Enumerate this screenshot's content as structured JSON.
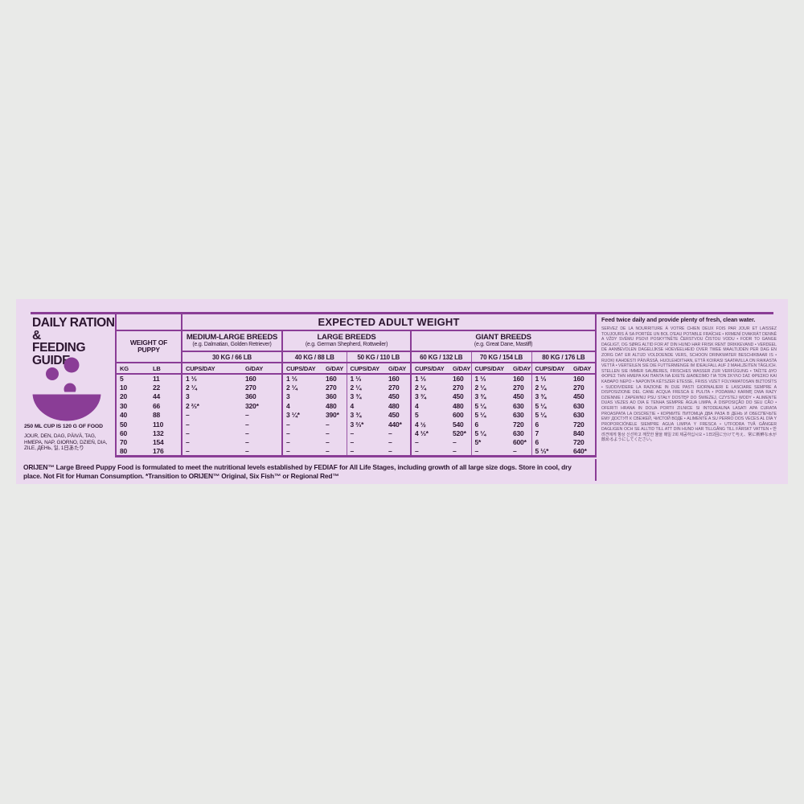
{
  "colors": {
    "background": "#e9eae8",
    "panel": "#ebd9ef",
    "accent_purple": "#8a3d96",
    "text": "#2c1630"
  },
  "left_panel": {
    "title_line1": "DAILY RATION &",
    "title_line2": "FEEDING GUIDE",
    "bowl_icon": "kibble-bowl-icon",
    "cup_note": "250 ML CUP IS 120 G OF FOOD",
    "day_words": "JOUR, DEN, DAG, PÄIVÄ, TAG, HMEPA, NAP, GIORNO, DZIEŃ, DIA, ZILE, ДЕНЬ, 일, 1日あたり"
  },
  "table": {
    "title": "EXPECTED ADULT WEIGHT",
    "weight_label_line1": "WEIGHT OF",
    "weight_label_line2": "PUPPY",
    "groups": [
      {
        "name": "MEDIUM-LARGE BREEDS",
        "examples": "(e.g. Dalmatian, Golden Retriever)",
        "weights": [
          "30 KG / 66 LB"
        ]
      },
      {
        "name": "LARGE BREEDS",
        "examples": "(e.g. German Shepherd, Rottweiler)",
        "weights": [
          "40 KG / 88 LB",
          "50 KG / 110 LB"
        ]
      },
      {
        "name": "GIANT BREEDS",
        "examples": "(e.g. Great Dane, Mastiff)",
        "weights": [
          "60 KG / 132 LB",
          "70 KG / 154 LB",
          "80 KG / 176 LB"
        ]
      }
    ],
    "col_headers": {
      "kg": "KG",
      "lb": "LB",
      "cups": "CUPS/DAY",
      "g": "G/DAY"
    },
    "rows": [
      {
        "kg": "5",
        "lb": "11",
        "cells": [
          "1 ⅓",
          "160",
          "1 ⅓",
          "160",
          "1 ⅓",
          "160",
          "1 ⅓",
          "160",
          "1 ⅓",
          "160",
          "1 ⅓",
          "160"
        ]
      },
      {
        "kg": "10",
        "lb": "22",
        "cells": [
          "2 ¼",
          "270",
          "2 ¼",
          "270",
          "2 ¼",
          "270",
          "2 ¼",
          "270",
          "2 ¼",
          "270",
          "2 ¼",
          "270"
        ]
      },
      {
        "kg": "20",
        "lb": "44",
        "cells": [
          "3",
          "360",
          "3",
          "360",
          "3 ¾",
          "450",
          "3 ¾",
          "450",
          "3 ¾",
          "450",
          "3 ¾",
          "450"
        ]
      },
      {
        "kg": "30",
        "lb": "66",
        "cells": [
          "2 ⅔*",
          "320*",
          "4",
          "480",
          "4",
          "480",
          "4",
          "480",
          "5 ¼",
          "630",
          "5 ¼",
          "630"
        ]
      },
      {
        "kg": "40",
        "lb": "88",
        "cells": [
          "–",
          "–",
          "3 ¼*",
          "390*",
          "3 ¾",
          "450",
          "5",
          "600",
          "5 ¼",
          "630",
          "5 ¼",
          "630"
        ]
      },
      {
        "kg": "50",
        "lb": "110",
        "cells": [
          "–",
          "–",
          "–",
          "–",
          "3 ⅔*",
          "440*",
          "4 ½",
          "540",
          "6",
          "720",
          "6",
          "720"
        ]
      },
      {
        "kg": "60",
        "lb": "132",
        "cells": [
          "–",
          "–",
          "–",
          "–",
          "–",
          "–",
          "4 ⅓*",
          "520*",
          "5 ¼",
          "630",
          "7",
          "840"
        ]
      },
      {
        "kg": "70",
        "lb": "154",
        "cells": [
          "–",
          "–",
          "–",
          "–",
          "–",
          "–",
          "–",
          "–",
          "5*",
          "600*",
          "6",
          "720"
        ]
      },
      {
        "kg": "80",
        "lb": "176",
        "cells": [
          "–",
          "–",
          "–",
          "–",
          "–",
          "–",
          "–",
          "–",
          "–",
          "–",
          "5 ⅓*",
          "640*"
        ]
      }
    ]
  },
  "footnote": "ORIJEN™ Large Breed Puppy Food is formulated to meet the nutritional levels established by FEDIAF for All Life Stages, including growth of all large size dogs. Store in cool, dry place. Not Fit for Human Consumption. *Transition to ORIJEN™ Original, Six Fish™ or Regional Red™",
  "right_panel": {
    "headline": "Feed twice daily and provide plenty of fresh, clean water.",
    "translations": "SERVEZ DE LA NOURRITURE À VOTRE CHIEN DEUX FOIS PAR JOUR ET LAISSEZ TOUJOURS À SA PORTÉE UN BOL D'EAU POTABLE FRAÎCHE • KRMENÍ DVAKRÁT DENNĚ A VŽDY SVÉMU PSOVI POSKYTNĚTE ČERSTVOU ČISTOU VODU • FODR TO GANGE DAGLIGT, OG SØRG ALTID FOR AT DIN HUND HAR FRISK RENT DRIKKEVAND • VERDEEL DE AANBEVOLEN DAGELIJKSE HOEVEELHEID OVER TWEE MAALTIJDEN PER DAG EN ZORG DAT ER ALTIJD VOLDOENDE VERS, SCHOON DRINKWATER BESCHIKBAAR IS • RUOKI KAHDESTI PÄIVÄSSÄ, HUOLEHDITHAN, ETTÄ KOIRASI SAATAVILLA ON RAIKASTA VETTÄ • VERTEILEN SIE DIE FUTTERMENGE IM IDEALFALL AUF 2 MAHLZEITEN TÄGLICH. STELLEN SIE IMMER SAUBERES, FRISCHES WASSER ZUR VERFÜGUNG • ΤΑΪΣΤΕ ΔΥΟ ΦΟΡΕΣ ΤΗΝ ΗΜΕΡΑ ΚΑΙ ΠΑΝΤΑ ΝΑ ΕΧΕΤΕ ΔΙΑΘΕΣΙΜΟ ΓΙΑ ΤΟΝ ΣΚΥΛΟ ΣΑΣ ΦΡΕΣΚΟ ΚΑΙ ΚΑΘΑΡΟ ΝΕΡΟ • NAPONTA KÉTSZER ETESSE, FRISS VIZET FOLYAMATOSAN BIZTOSÍTS • SUDDIVIDERE LA RAZIONE IN DUE PASTI GIORNALIERI E LASCIARE SEMPRE A DISPOSIZIONE DEL CANE ACQUA FRESCA E PULITA • PODAWAJ KARMĘ DWA RAZY DZIENNIE I ZAPEWNIJ PSU STAŁY DOSTĘP DO ŚWIEŻEJ, CZYSTEJ WODY • ALIMENTE DUAS VEZES AO DIA E TENHA SEMPRE ÁGUA LIMPA, À DISPOSIÇÃO DO SEU CÃO • OFERITI HRANA IN DOUA PORTII ZILNICE SI INTODEAUNA LASATI APA CURATA PROASPATA LA DISCRETIE • КОРМИТЕ ПИТОМЦА ДВА РАЗА В ДЕНЬ И ОБЕСПЕЧЬТЕ ЕМУ ДОСТУП К СВЕЖЕЙ, ЧИСТОЙ ВОДЕ • ALIMENTE A SU PERRO DOS VECES AL DÍA Y PROPORCIÓNELE SIEMPRE AGUA LIMPIA Y FRESCA • UTFODRA TVÅ GÅNGER DAGLIGEN OCH SE ALLTID TILL ATT DIN HUND HAR TILLGÅNG TILL FÄRSKT VATTEN • 반려견에게 항상 신선하고 깨끗한 물을 매일 2회 제공하십시오 • 1日2回に分けて与え、常に新鮮な水が飲めるようにしてください。"
  }
}
